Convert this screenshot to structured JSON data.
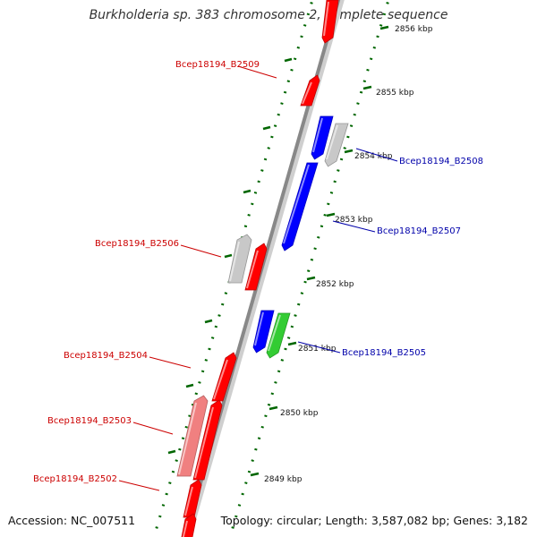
{
  "title": "Burkholderia sp. 383 chromosome 2, complete sequence",
  "footer": {
    "accession": "Accession: NC_007511",
    "summary": "Topology: circular; Length: 3,587,082 bp; Genes: 3,182"
  },
  "colors": {
    "forward_gene": "#ff0000",
    "reverse_gene": "#0000ff",
    "forward_label": "#cc0000",
    "reverse_label": "#0000aa",
    "gray_gene": "#c8c8c8",
    "pink_gene": "#f08080",
    "green_gene": "#33cc33",
    "backbone": "#888888",
    "ruler_dots": "#006600"
  },
  "ticks": [
    {
      "label": "2856 kbp"
    },
    {
      "label": "2855 kbp"
    },
    {
      "label": "2854 kbp"
    },
    {
      "label": "2853 kbp"
    },
    {
      "label": "2852 kbp"
    },
    {
      "label": "2851 kbp"
    },
    {
      "label": "2850 kbp"
    },
    {
      "label": "2849 kbp"
    }
  ],
  "gene_labels": [
    {
      "text": "Bcep18194_B2509",
      "strand": "forward"
    },
    {
      "text": "Bcep18194_B2508",
      "strand": "reverse"
    },
    {
      "text": "Bcep18194_B2507",
      "strand": "reverse"
    },
    {
      "text": "Bcep18194_B2506",
      "strand": "forward"
    },
    {
      "text": "Bcep18194_B2505",
      "strand": "reverse"
    },
    {
      "text": "Bcep18194_B2504",
      "strand": "forward"
    },
    {
      "text": "Bcep18194_B2503",
      "strand": "forward"
    },
    {
      "text": "Bcep18194_B2502",
      "strand": "forward"
    }
  ]
}
